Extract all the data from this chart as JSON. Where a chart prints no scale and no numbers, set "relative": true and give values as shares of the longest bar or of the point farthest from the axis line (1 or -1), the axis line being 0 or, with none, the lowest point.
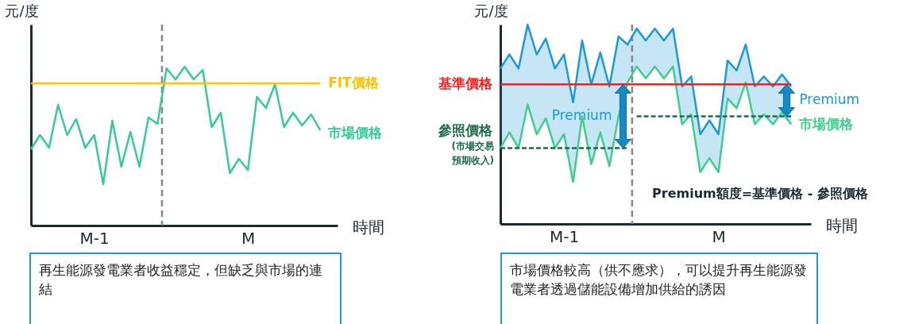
{
  "chart_data": [
    {
      "type": "line",
      "relative": true,
      "xlabel": "時間",
      "ylabel": "元/度",
      "tick_labels": "x",
      "grid": false,
      "categories": [
        null,
        null,
        null,
        null,
        null,
        null,
        null,
        "M-1",
        null,
        null,
        null,
        null,
        null,
        null,
        null,
        null,
        null,
        null,
        null,
        null,
        null,
        null,
        null,
        null,
        "M",
        null,
        null,
        null,
        null,
        null,
        null,
        null,
        null
      ],
      "series": [
        {
          "name": "市場價格",
          "color": "#33cc99",
          "values": [
            0.48,
            0.57,
            0.49,
            0.76,
            0.57,
            0.67,
            0.49,
            0.57,
            0.26,
            0.66,
            0.37,
            0.59,
            0.37,
            0.68,
            0.64,
            0.99,
            0.92,
            1.0,
            0.92,
            0.98,
            0.62,
            0.71,
            0.33,
            0.42,
            0.35,
            0.81,
            0.74,
            0.89,
            0.62,
            0.71,
            0.63,
            0.7,
            0.6
          ]
        },
        {
          "name": "FIT價格",
          "color": "#ffc000",
          "values": [
            0.895,
            0.895,
            0.895,
            0.895,
            0.895,
            0.895,
            0.895,
            0.895,
            0.895,
            0.895,
            0.895,
            0.895,
            0.895,
            0.895,
            0.895,
            0.895,
            0.895,
            0.895,
            0.895,
            0.895,
            0.895,
            0.895,
            0.895,
            0.895,
            0.895,
            0.895,
            0.895,
            0.895,
            0.895,
            0.895,
            0.895,
            0.895,
            0.895
          ]
        }
      ],
      "annotations": [
        "再生能源發電業者收益穩定，但缺乏與市場的連結"
      ]
    },
    {
      "type": "line",
      "relative": true,
      "xlabel": "時間",
      "ylabel": "元/度",
      "tick_labels": "x",
      "grid": false,
      "categories": [
        null,
        null,
        null,
        null,
        null,
        null,
        null,
        "M-1",
        null,
        null,
        null,
        null,
        null,
        null,
        null,
        null,
        null,
        null,
        null,
        null,
        null,
        null,
        null,
        null,
        "M",
        null,
        null,
        null,
        null,
        null,
        null,
        null,
        null
      ],
      "series": [
        {
          "color": "#1a9ad6",
          "values": [
            0.78,
            0.85,
            0.78,
            1.0,
            0.85,
            0.93,
            0.78,
            0.85,
            0.61,
            0.92,
            0.7,
            0.86,
            0.69,
            0.94,
            0.9,
            0.98,
            0.92,
            0.98,
            0.92,
            0.98,
            0.69,
            0.74,
            0.45,
            0.52,
            0.45,
            0.82,
            0.77,
            0.9,
            0.69,
            0.74,
            0.69,
            0.75,
            0.69
          ]
        },
        {
          "name": "市場價格",
          "color": "#3ecf8e",
          "values": [
            0.38,
            0.46,
            0.38,
            0.6,
            0.45,
            0.53,
            0.38,
            0.45,
            0.21,
            0.54,
            0.3,
            0.46,
            0.29,
            0.54,
            0.71,
            0.79,
            0.73,
            0.79,
            0.73,
            0.79,
            0.5,
            0.55,
            0.26,
            0.33,
            0.26,
            0.63,
            0.58,
            0.71,
            0.5,
            0.55,
            0.5,
            0.56,
            0.5
          ],
          "lower": [
            0.38,
            0.46,
            0.38,
            0.6,
            0.45,
            0.53,
            0.38,
            0.45,
            0.21,
            0.54,
            0.3,
            0.46,
            0.29,
            0.54,
            0.71,
            0.79,
            0.73,
            0.79,
            0.73,
            0.79,
            0.5,
            0.55,
            0.26,
            0.33,
            0.26,
            0.63,
            0.58,
            0.71,
            0.5,
            0.55,
            0.5,
            0.56,
            0.5
          ],
          "upper": [
            0.78,
            0.85,
            0.78,
            1.0,
            0.85,
            0.93,
            0.78,
            0.85,
            0.61,
            0.92,
            0.7,
            0.86,
            0.69,
            0.94,
            0.9,
            0.98,
            0.92,
            0.98,
            0.92,
            0.98,
            0.69,
            0.74,
            0.45,
            0.52,
            0.45,
            0.82,
            0.77,
            0.9,
            0.69,
            0.74,
            0.69,
            0.75,
            0.69
          ]
        },
        {
          "name": "基準價格",
          "color": "#ff1a1a",
          "values": [
            0.7,
            0.7,
            0.7,
            0.7,
            0.7,
            0.7,
            0.7,
            0.7,
            0.7,
            0.7,
            0.7,
            0.7,
            0.7,
            0.7,
            0.7,
            0.7,
            0.7,
            0.7,
            0.7,
            0.7,
            0.7,
            0.7,
            0.7,
            0.7,
            0.7,
            0.7,
            0.7,
            0.7,
            0.7,
            0.7,
            0.7,
            0.7,
            0.7
          ]
        },
        {
          "name": "參照價格",
          "color": "#1e6b4a",
          "line_style": "dashed",
          "values": [
            0.38,
            0.38,
            0.38,
            0.38,
            0.38,
            0.38,
            0.38,
            0.38,
            0.38,
            0.38,
            0.38,
            0.38,
            0.38,
            0.38,
            0.38,
            null,
            null,
            null,
            null,
            null,
            null,
            null,
            null,
            null,
            null,
            null,
            null,
            null,
            null,
            null,
            null,
            null,
            null
          ]
        },
        {
          "color": "#1e6b4a",
          "line_style": "dashed",
          "values": [
            null,
            null,
            null,
            null,
            null,
            null,
            null,
            null,
            null,
            null,
            null,
            null,
            null,
            null,
            null,
            0.54,
            0.54,
            0.54,
            0.54,
            0.54,
            0.54,
            0.54,
            0.54,
            0.54,
            0.54,
            0.54,
            0.54,
            0.54,
            0.54,
            0.54,
            0.54,
            0.54,
            0.54
          ]
        }
      ],
      "annotations": [
        "(市場交易預期收入)",
        "Premium",
        "Premium",
        "Premium額度=基準價格 - 參照價格",
        "市場價格較高（供不應求），可以提升再生能源發電業者透過儲能設備增加供給的誘因"
      ]
    }
  ]
}
